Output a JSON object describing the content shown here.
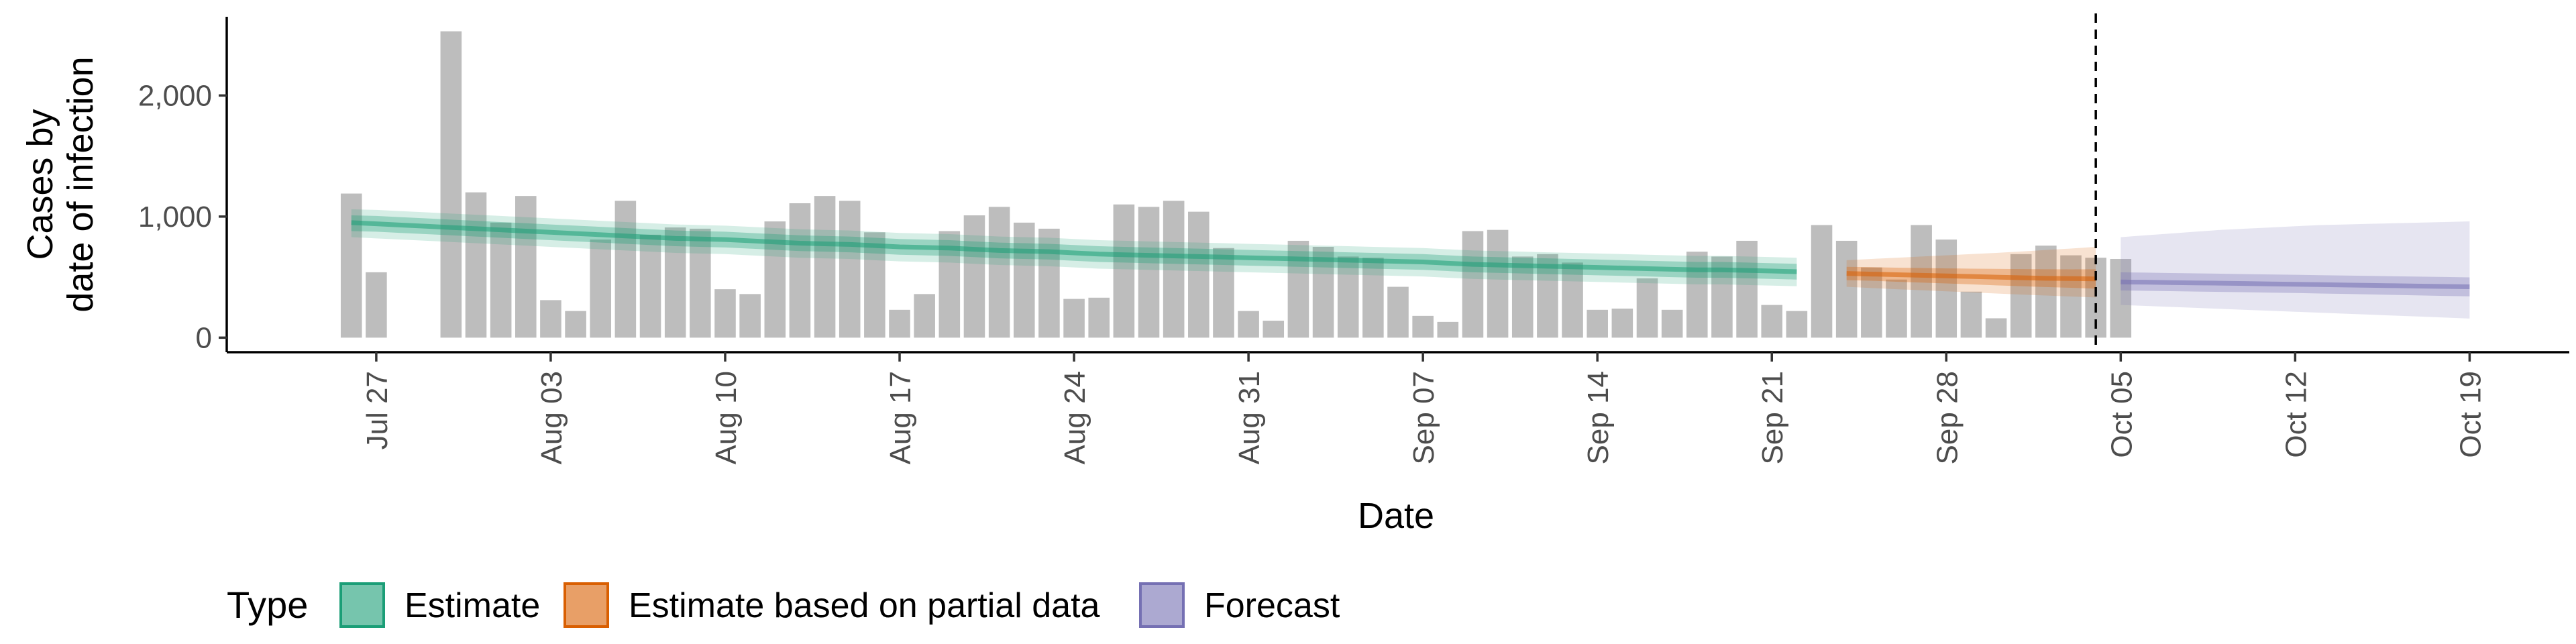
{
  "chart_data": {
    "type": "bar",
    "xlabel": "Date",
    "ylabel_lines": [
      "Cases by",
      "date of infection"
    ],
    "ylim": [
      -120,
      2650
    ],
    "xlim": [
      "2020-07-21",
      "2020-10-23"
    ],
    "y_ticks": [
      {
        "value": 0,
        "label": "0"
      },
      {
        "value": 1000,
        "label": "1,000"
      },
      {
        "value": 2000,
        "label": "2,000"
      }
    ],
    "x_ticks": [
      {
        "date": "2020-07-27",
        "label": "Jul 27"
      },
      {
        "date": "2020-08-03",
        "label": "Aug 03"
      },
      {
        "date": "2020-08-10",
        "label": "Aug 10"
      },
      {
        "date": "2020-08-17",
        "label": "Aug 17"
      },
      {
        "date": "2020-08-24",
        "label": "Aug 24"
      },
      {
        "date": "2020-08-31",
        "label": "Aug 31"
      },
      {
        "date": "2020-09-07",
        "label": "Sep 07"
      },
      {
        "date": "2020-09-14",
        "label": "Sep 14"
      },
      {
        "date": "2020-09-21",
        "label": "Sep 21"
      },
      {
        "date": "2020-09-28",
        "label": "Sep 28"
      },
      {
        "date": "2020-10-05",
        "label": "Oct 05"
      },
      {
        "date": "2020-10-12",
        "label": "Oct 12"
      },
      {
        "date": "2020-10-19",
        "label": "Oct 19"
      }
    ],
    "bars": {
      "color": "#bdbdbd",
      "start_date": "2020-07-26",
      "values": [
        1190,
        540,
        null,
        null,
        2530,
        1200,
        950,
        1170,
        310,
        220,
        810,
        1130,
        850,
        910,
        900,
        400,
        360,
        960,
        1110,
        1170,
        1130,
        870,
        230,
        360,
        880,
        1010,
        1080,
        950,
        900,
        320,
        330,
        1100,
        1080,
        1130,
        1040,
        740,
        220,
        140,
        800,
        750,
        670,
        660,
        420,
        180,
        130,
        880,
        890,
        670,
        690,
        620,
        230,
        240,
        490,
        230,
        710,
        670,
        800,
        270,
        220,
        930,
        800,
        580,
        480,
        930,
        810,
        380,
        160,
        690,
        760,
        680,
        660,
        650
      ]
    },
    "vertical_line": {
      "date": "2020-10-04",
      "style": "dashed"
    },
    "series": [
      {
        "name": "Estimate",
        "color": "#1b9e77",
        "x_start": "2020-07-26",
        "median": [
          950,
          940,
          930,
          920,
          910,
          900,
          890,
          880,
          870,
          860,
          850,
          840,
          830,
          820,
          815,
          810,
          800,
          790,
          780,
          775,
          770,
          760,
          750,
          745,
          740,
          730,
          720,
          715,
          710,
          700,
          690,
          685,
          680,
          675,
          670,
          665,
          660,
          655,
          650,
          645,
          640,
          635,
          630,
          625,
          615,
          605,
          600,
          595,
          590,
          585,
          580,
          575,
          570,
          565,
          560,
          560,
          555,
          550,
          545
        ],
        "inner_lo": [
          880,
          875,
          865,
          855,
          845,
          835,
          825,
          815,
          805,
          795,
          785,
          775,
          765,
          755,
          750,
          745,
          735,
          725,
          715,
          710,
          705,
          695,
          685,
          680,
          675,
          665,
          655,
          650,
          645,
          635,
          625,
          620,
          615,
          610,
          605,
          600,
          595,
          590,
          585,
          580,
          575,
          570,
          565,
          560,
          550,
          540,
          535,
          530,
          525,
          520,
          515,
          510,
          505,
          500,
          495,
          495,
          490,
          485,
          480
        ],
        "inner_hi": [
          1010,
          1005,
          995,
          985,
          975,
          965,
          955,
          945,
          935,
          925,
          915,
          905,
          895,
          885,
          880,
          875,
          865,
          855,
          845,
          840,
          835,
          825,
          815,
          810,
          805,
          795,
          785,
          780,
          775,
          765,
          755,
          750,
          745,
          740,
          735,
          730,
          725,
          720,
          715,
          710,
          705,
          700,
          695,
          690,
          680,
          670,
          665,
          660,
          655,
          650,
          645,
          640,
          635,
          630,
          625,
          625,
          620,
          615,
          610
        ],
        "outer_lo": [
          830,
          820,
          810,
          800,
          790,
          780,
          770,
          760,
          750,
          740,
          730,
          720,
          710,
          700,
          695,
          690,
          680,
          670,
          660,
          655,
          650,
          640,
          630,
          625,
          620,
          610,
          600,
          595,
          590,
          580,
          570,
          565,
          560,
          555,
          550,
          545,
          540,
          535,
          530,
          525,
          520,
          515,
          510,
          505,
          495,
          485,
          480,
          475,
          470,
          465,
          460,
          455,
          450,
          445,
          440,
          440,
          435,
          430,
          425
        ],
        "outer_hi": [
          1060,
          1055,
          1045,
          1035,
          1025,
          1015,
          1005,
          995,
          985,
          975,
          965,
          955,
          945,
          935,
          930,
          925,
          915,
          905,
          895,
          890,
          885,
          875,
          865,
          860,
          855,
          845,
          835,
          830,
          825,
          815,
          805,
          800,
          795,
          790,
          785,
          780,
          775,
          770,
          765,
          760,
          755,
          750,
          745,
          740,
          730,
          720,
          715,
          710,
          705,
          700,
          695,
          690,
          685,
          680,
          675,
          675,
          670,
          665,
          660
        ]
      },
      {
        "name": "Estimate based on partial data",
        "color": "#d95f02",
        "x_start": "2020-09-24",
        "median": [
          530,
          525,
          520,
          515,
          510,
          505,
          500,
          495,
          490,
          488,
          485
        ],
        "inner_lo": [
          475,
          470,
          462,
          455,
          448,
          440,
          432,
          425,
          418,
          412,
          405
        ],
        "inner_hi": [
          585,
          582,
          578,
          575,
          572,
          570,
          568,
          566,
          565,
          564,
          565
        ],
        "outer_lo": [
          420,
          410,
          400,
          392,
          383,
          374,
          365,
          356,
          348,
          340,
          332
        ],
        "outer_hi": [
          640,
          650,
          660,
          670,
          680,
          690,
          700,
          712,
          724,
          736,
          750
        ]
      },
      {
        "name": "Forecast",
        "color": "#7570b3",
        "x_start": "2020-10-05",
        "median": [
          460,
          458,
          455,
          452,
          450,
          447,
          444,
          441,
          438,
          435,
          432,
          429,
          426,
          423,
          420
        ],
        "inner_lo": [
          390,
          387,
          384,
          381,
          378,
          375,
          372,
          369,
          365,
          361,
          357,
          353,
          349,
          345,
          341
        ],
        "inner_hi": [
          540,
          537,
          534,
          531,
          528,
          525,
          522,
          519,
          516,
          513,
          510,
          507,
          504,
          501,
          498
        ],
        "outer_lo": [
          270,
          262,
          254,
          246,
          238,
          230,
          222,
          214,
          206,
          198,
          190,
          182,
          174,
          166,
          158
        ],
        "outer_hi": [
          830,
          845,
          860,
          875,
          890,
          900,
          910,
          920,
          930,
          935,
          940,
          945,
          950,
          955,
          960
        ]
      }
    ],
    "legend": {
      "title": "Type",
      "position": "bottom",
      "items": [
        {
          "label": "Estimate",
          "color": "#1b9e77"
        },
        {
          "label": "Estimate based on partial data",
          "color": "#d95f02"
        },
        {
          "label": "Forecast",
          "color": "#7570b3"
        }
      ]
    }
  }
}
